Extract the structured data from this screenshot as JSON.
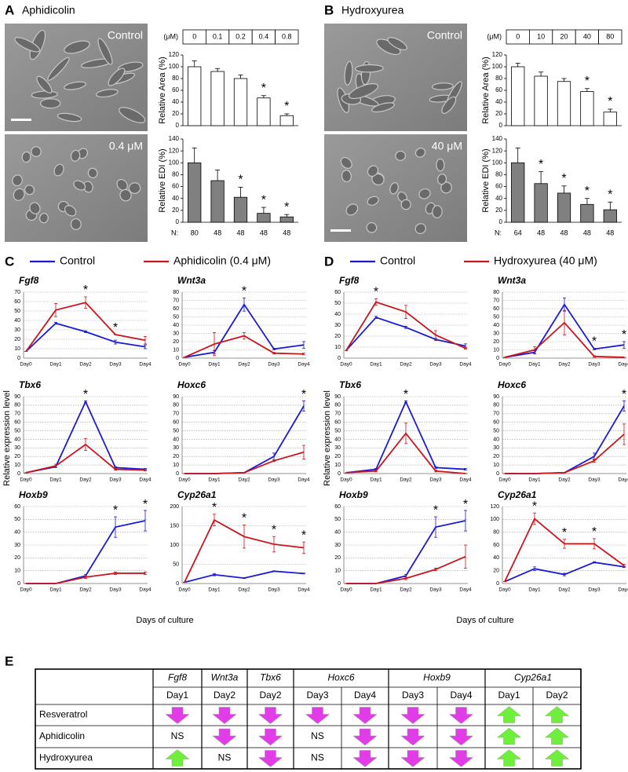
{
  "panels": {
    "A": {
      "letter": "A",
      "title": "Aphidicolin",
      "image_labels": [
        "Control",
        "0.4 μM"
      ],
      "conc_unit": "(μM)",
      "concentrations": [
        "0",
        "0.1",
        "0.2",
        "0.4",
        "0.8"
      ],
      "n_label": "N:",
      "n": [
        "80",
        "48",
        "48",
        "48",
        "48"
      ]
    },
    "B": {
      "letter": "B",
      "title": "Hydroxyurea",
      "image_labels": [
        "Control",
        "40 μM"
      ],
      "conc_unit": "(μM)",
      "concentrations": [
        "0",
        "10",
        "20",
        "40",
        "80"
      ],
      "n_label": "N:",
      "n": [
        "64",
        "48",
        "48",
        "48",
        "48"
      ]
    },
    "C": {
      "letter": "C",
      "ylabel": "Relative expression level",
      "xlabel": "Days of culture"
    },
    "D": {
      "letter": "D",
      "ylabel": "Relative expression level",
      "xlabel": "Days of culture"
    },
    "E": {
      "letter": "E"
    }
  },
  "chart_data": [
    {
      "type": "bar",
      "ylabel": "Relative Area (%)",
      "color": "#ffffff",
      "values": [
        100,
        92,
        80,
        47,
        17
      ],
      "errors": [
        10,
        5,
        6,
        4,
        3
      ],
      "significance": [
        null,
        null,
        null,
        "*",
        "*"
      ],
      "ylim": [
        0,
        120
      ],
      "yticks": [
        0,
        20,
        40,
        60,
        80,
        100,
        120
      ]
    },
    {
      "type": "bar",
      "ylabel": "Relative EDI (%)",
      "color": "#808080",
      "values": [
        100,
        70,
        42,
        15,
        9
      ],
      "errors": [
        25,
        18,
        17,
        10,
        4
      ],
      "significance": [
        null,
        null,
        "*",
        "*",
        "*"
      ],
      "ylim": [
        0,
        140
      ],
      "yticks": [
        0,
        20,
        40,
        60,
        80,
        100,
        120,
        140
      ]
    },
    {
      "type": "bar",
      "ylabel": "Relative Area (%)",
      "color": "#ffffff",
      "values": [
        100,
        84,
        75,
        58,
        23
      ],
      "errors": [
        6,
        7,
        5,
        5,
        5
      ],
      "significance": [
        null,
        null,
        null,
        "*",
        "*"
      ],
      "ylim": [
        0,
        120
      ],
      "yticks": [
        0,
        20,
        40,
        60,
        80,
        100,
        120
      ]
    },
    {
      "type": "bar",
      "ylabel": "Relative EDI (%)",
      "color": "#808080",
      "values": [
        100,
        65,
        49,
        30,
        21
      ],
      "errors": [
        25,
        20,
        12,
        10,
        13
      ],
      "significance": [
        null,
        "*",
        "*",
        "*",
        "*"
      ],
      "ylim": [
        0,
        140
      ],
      "yticks": [
        0,
        20,
        40,
        60,
        80,
        100,
        120,
        140
      ]
    },
    {
      "type": "line",
      "title": "Fgf8",
      "categories": [
        "Day0",
        "Day1",
        "Day2",
        "Day3",
        "Day4"
      ],
      "ylim": [
        0,
        70
      ],
      "yticks": [
        0,
        10,
        20,
        30,
        40,
        50,
        60,
        70
      ],
      "grid": true,
      "significance": [
        null,
        null,
        "*",
        "*",
        null
      ],
      "series": [
        {
          "name": "Control",
          "color": "#1a1ad6",
          "values": [
            7,
            37,
            28,
            17,
            12
          ],
          "errors": [
            0,
            1,
            1,
            2,
            2
          ]
        },
        {
          "name": "Aphidicolin (0.4 μM)",
          "color": "#c8161d",
          "values": [
            7,
            51,
            59,
            25,
            19
          ],
          "errors": [
            0,
            7,
            6,
            0,
            4
          ]
        }
      ]
    },
    {
      "type": "line",
      "title": "Wnt3a",
      "categories": [
        "Day0",
        "Day1",
        "Day2",
        "Day3",
        "Day4"
      ],
      "ylim": [
        0,
        80
      ],
      "yticks": [
        0,
        10,
        20,
        30,
        40,
        50,
        60,
        70,
        80
      ],
      "grid": true,
      "significance": [
        null,
        null,
        "*",
        null,
        null
      ],
      "series": [
        {
          "color": "#1a1ad6",
          "values": [
            1,
            7,
            65,
            11,
            16
          ],
          "errors": [
            0,
            2,
            8,
            1,
            4
          ]
        },
        {
          "color": "#c8161d",
          "values": [
            1,
            17,
            27,
            6,
            5
          ],
          "errors": [
            0,
            14,
            4,
            1,
            1
          ]
        }
      ]
    },
    {
      "type": "line",
      "title": "Tbx6",
      "categories": [
        "Day0",
        "Day1",
        "Day2",
        "Day3",
        "Day4"
      ],
      "ylim": [
        0,
        90
      ],
      "yticks": [
        0,
        10,
        20,
        30,
        40,
        50,
        60,
        70,
        80,
        90
      ],
      "grid": true,
      "significance": [
        null,
        null,
        "*",
        null,
        null
      ],
      "series": [
        {
          "color": "#1a1ad6",
          "values": [
            1,
            8,
            84,
            7,
            5
          ],
          "errors": [
            0,
            1,
            1,
            1,
            1
          ]
        },
        {
          "color": "#c8161d",
          "values": [
            1,
            9,
            34,
            5,
            4
          ],
          "errors": [
            0,
            2,
            7,
            1,
            1
          ]
        }
      ]
    },
    {
      "type": "line",
      "title": "Hoxc6",
      "categories": [
        "Day0",
        "Day1",
        "Day2",
        "Day3",
        "Day4"
      ],
      "ylim": [
        0,
        90
      ],
      "yticks": [
        0,
        10,
        20,
        30,
        40,
        50,
        60,
        70,
        80,
        90
      ],
      "grid": true,
      "significance": [
        null,
        null,
        null,
        null,
        "*"
      ],
      "series": [
        {
          "color": "#1a1ad6",
          "values": [
            0,
            0,
            1,
            20,
            79
          ],
          "errors": [
            0,
            0,
            0,
            4,
            6
          ]
        },
        {
          "color": "#c8161d",
          "values": [
            0,
            0,
            1,
            15,
            25
          ],
          "errors": [
            0,
            0,
            0,
            1,
            8
          ]
        }
      ]
    },
    {
      "type": "line",
      "title": "Hoxb9",
      "categories": [
        "Day0",
        "Day1",
        "Day2",
        "Day3",
        "Day4"
      ],
      "ylim": [
        0,
        60
      ],
      "yticks": [
        0,
        10,
        20,
        30,
        40,
        50,
        60
      ],
      "grid": true,
      "significance": [
        null,
        null,
        null,
        "*",
        "*"
      ],
      "series": [
        {
          "color": "#1a1ad6",
          "values": [
            0,
            0,
            6,
            44,
            49
          ],
          "errors": [
            0,
            0,
            1,
            8,
            8
          ]
        },
        {
          "color": "#c8161d",
          "values": [
            0,
            0,
            5,
            8,
            8
          ],
          "errors": [
            0,
            0,
            1,
            1,
            1
          ]
        }
      ]
    },
    {
      "type": "line",
      "title": "Cyp26a1",
      "categories": [
        "Day0",
        "Day1",
        "Day2",
        "Day3",
        "Day4"
      ],
      "ylim": [
        0,
        200
      ],
      "yticks": [
        0,
        50,
        100,
        150,
        200
      ],
      "grid": true,
      "significance": [
        null,
        "*",
        "*",
        "*",
        "*"
      ],
      "series": [
        {
          "color": "#1a1ad6",
          "values": [
            3,
            23,
            14,
            32,
            26
          ],
          "errors": [
            0,
            3,
            1,
            1,
            1
          ]
        },
        {
          "color": "#c8161d",
          "values": [
            3,
            165,
            122,
            102,
            93
          ],
          "errors": [
            0,
            15,
            30,
            20,
            15
          ]
        }
      ]
    },
    {
      "type": "line",
      "title": "Fgf8",
      "categories": [
        "Day0",
        "Day1",
        "Day2",
        "Day3",
        "Day4"
      ],
      "ylim": [
        0,
        60
      ],
      "yticks": [
        0,
        10,
        20,
        30,
        40,
        50,
        60
      ],
      "grid": true,
      "significance": [
        null,
        "*",
        null,
        null,
        null
      ],
      "series": [
        {
          "name": "Control",
          "color": "#1a1ad6",
          "values": [
            7,
            37,
            28,
            17,
            11
          ],
          "errors": [
            0,
            1,
            1,
            1,
            2
          ]
        },
        {
          "name": "Hydroxyurea (40 μM)",
          "color": "#c8161d",
          "values": [
            7,
            51,
            42,
            21,
            9
          ],
          "errors": [
            0,
            3,
            6,
            4,
            1
          ]
        }
      ]
    },
    {
      "type": "line",
      "title": "Wnt3a",
      "categories": [
        "Day0",
        "Day1",
        "Day2",
        "Day3",
        "Day4"
      ],
      "ylim": [
        0,
        80
      ],
      "yticks": [
        0,
        10,
        20,
        30,
        40,
        50,
        60,
        70,
        80
      ],
      "grid": true,
      "significance": [
        null,
        null,
        null,
        "*",
        "*"
      ],
      "series": [
        {
          "color": "#1a1ad6",
          "values": [
            1,
            7,
            65,
            11,
            16
          ],
          "errors": [
            0,
            2,
            8,
            1,
            4
          ]
        },
        {
          "color": "#c8161d",
          "values": [
            1,
            10,
            43,
            2,
            1
          ],
          "errors": [
            0,
            4,
            15,
            1,
            0
          ]
        }
      ]
    },
    {
      "type": "line",
      "title": "Tbx6",
      "categories": [
        "Day0",
        "Day1",
        "Day2",
        "Day3",
        "Day4"
      ],
      "ylim": [
        0,
        90
      ],
      "yticks": [
        0,
        10,
        20,
        30,
        40,
        50,
        60,
        70,
        80,
        90
      ],
      "grid": true,
      "significance": [
        null,
        null,
        "*",
        null,
        null
      ],
      "series": [
        {
          "color": "#1a1ad6",
          "values": [
            1,
            5,
            84,
            7,
            5
          ],
          "errors": [
            0,
            1,
            1,
            1,
            1
          ]
        },
        {
          "color": "#c8161d",
          "values": [
            1,
            3,
            47,
            3,
            0
          ],
          "errors": [
            0,
            1,
            12,
            1,
            0
          ]
        }
      ]
    },
    {
      "type": "line",
      "title": "Hoxc6",
      "categories": [
        "Day0",
        "Day1",
        "Day2",
        "Day3",
        "Day4"
      ],
      "ylim": [
        0,
        90
      ],
      "yticks": [
        0,
        10,
        20,
        30,
        40,
        50,
        60,
        70,
        80,
        90
      ],
      "grid": true,
      "significance": [
        null,
        null,
        null,
        null,
        "*"
      ],
      "series": [
        {
          "color": "#1a1ad6",
          "values": [
            0,
            0,
            1,
            20,
            79
          ],
          "errors": [
            0,
            0,
            0,
            4,
            6
          ]
        },
        {
          "color": "#c8161d",
          "values": [
            0,
            0,
            1,
            15,
            46
          ],
          "errors": [
            0,
            0,
            0,
            2,
            12
          ]
        }
      ]
    },
    {
      "type": "line",
      "title": "Hoxb9",
      "categories": [
        "Day0",
        "Day1",
        "Day2",
        "Day3",
        "Day4"
      ],
      "ylim": [
        0,
        60
      ],
      "yticks": [
        0,
        10,
        20,
        30,
        40,
        50,
        60
      ],
      "grid": true,
      "significance": [
        null,
        null,
        null,
        "*",
        "*"
      ],
      "series": [
        {
          "color": "#1a1ad6",
          "values": [
            0,
            0,
            6,
            44,
            49
          ],
          "errors": [
            0,
            0,
            1,
            8,
            8
          ]
        },
        {
          "color": "#c8161d",
          "values": [
            0,
            0,
            4,
            11,
            21
          ],
          "errors": [
            0,
            0,
            1,
            1,
            9
          ]
        }
      ]
    },
    {
      "type": "line",
      "title": "Cyp26a1",
      "categories": [
        "Day0",
        "Day1",
        "Day2",
        "Day3",
        "Day4"
      ],
      "ylim": [
        0,
        120
      ],
      "yticks": [
        0,
        20,
        40,
        60,
        80,
        100,
        120
      ],
      "grid": true,
      "significance": [
        null,
        "*",
        "*",
        "*",
        null
      ],
      "series": [
        {
          "color": "#1a1ad6",
          "values": [
            3,
            23,
            14,
            33,
            26
          ],
          "errors": [
            0,
            3,
            2,
            1,
            1
          ]
        },
        {
          "color": "#c8161d",
          "values": [
            3,
            101,
            62,
            62,
            28
          ],
          "errors": [
            0,
            9,
            7,
            8,
            2
          ]
        }
      ]
    }
  ],
  "table": {
    "down_color": "#e23be8",
    "up_color": "#6ef03a",
    "genes": [
      {
        "name": "Fgf8",
        "days": [
          "Day1"
        ]
      },
      {
        "name": "Wnt3a",
        "days": [
          "Day2"
        ]
      },
      {
        "name": "Tbx6",
        "days": [
          "Day2"
        ]
      },
      {
        "name": "Hoxc6",
        "days": [
          "Day3",
          "Day4"
        ]
      },
      {
        "name": "Hoxb9",
        "days": [
          "Day3",
          "Day4"
        ]
      },
      {
        "name": "Cyp26a1",
        "days": [
          "Day1",
          "Day2"
        ]
      }
    ],
    "rows": [
      {
        "label": "Resveratrol",
        "cells": [
          {
            "arrow": "down"
          },
          {
            "arrow": "down"
          },
          {
            "arrow": "down"
          },
          {
            "arrow": "down"
          },
          {
            "arrow": "down"
          },
          {
            "arrow": "down"
          },
          {
            "arrow": "down"
          },
          {
            "arrow": "up"
          },
          {
            "arrow": "up"
          }
        ]
      },
      {
        "label": "Aphidicolin",
        "cells": [
          "NS",
          {
            "arrow": "down"
          },
          {
            "arrow": "down"
          },
          "NS",
          {
            "arrow": "down"
          },
          {
            "arrow": "down"
          },
          {
            "arrow": "down"
          },
          {
            "arrow": "up"
          },
          {
            "arrow": "up"
          }
        ]
      },
      {
        "label": "Hydroxyurea",
        "cells": [
          {
            "arrow": "up"
          },
          "NS",
          {
            "arrow": "down"
          },
          "NS",
          {
            "arrow": "down"
          },
          {
            "arrow": "down"
          },
          {
            "arrow": "down"
          },
          {
            "arrow": "up"
          },
          {
            "arrow": "up"
          }
        ]
      }
    ]
  }
}
